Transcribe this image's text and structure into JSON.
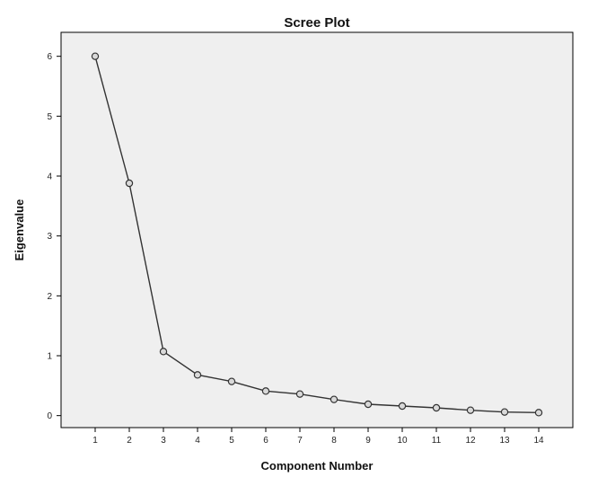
{
  "chart_data": {
    "type": "line",
    "title": "Scree Plot",
    "xlabel": "Component Number",
    "ylabel": "Eigenvalue",
    "x": [
      1,
      2,
      3,
      4,
      5,
      6,
      7,
      8,
      9,
      10,
      11,
      12,
      13,
      14
    ],
    "series": [
      {
        "values": [
          6.0,
          3.88,
          1.07,
          0.68,
          0.57,
          0.41,
          0.36,
          0.27,
          0.19,
          0.16,
          0.13,
          0.09,
          0.06,
          0.05
        ]
      }
    ],
    "xlim": [
      0,
      15
    ],
    "ylim": [
      -0.2,
      6.4
    ],
    "yticks": [
      0,
      1,
      2,
      3,
      4,
      5,
      6
    ],
    "xticks": [
      1,
      2,
      3,
      4,
      5,
      6,
      7,
      8,
      9,
      10,
      11,
      12,
      13,
      14
    ],
    "grid": false,
    "marker": "open-circle",
    "colors": {
      "plot_background": "#efefef",
      "line": "#333333",
      "marker_fill": "#d9d9d9"
    }
  }
}
